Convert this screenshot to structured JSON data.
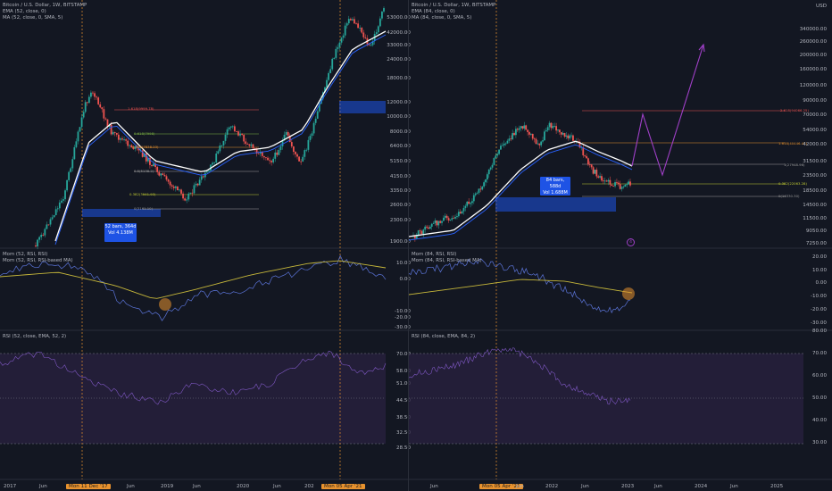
{
  "left": {
    "title": "Bitcoin / U.S. Dollar, 1W, BITSTAMP",
    "ema": "EMA (52, close, 0)",
    "ma": "MA (52, close, 0, SMA, 5)",
    "mom": "Mom (52, RSI, RSI)",
    "mom_ma": "Mom (52, RSI, RSI-based MA)",
    "rsi": "RSI (52, close, EMA, 52, 2)",
    "box_line1": "52 bars, 364d",
    "box_line2": "Vol 4.138M",
    "fib1": "1.618(9999.78)",
    "fib2": "0.786(7838.23)",
    "fib3": "0.5(5138.2)",
    "fib4": "0.382(3941.93)",
    "fib5": "0(3161.10)",
    "fib6": "0.618(7998)",
    "price_axis": [
      "53000.00",
      "42000.00",
      "33000.00",
      "24000.00",
      "18000.00",
      "12000.00",
      "10000.00",
      "8000.00",
      "6400.00",
      "5150.00",
      "4150.00",
      "3350.00",
      "2600.00",
      "2300.00",
      "1900.00"
    ],
    "mom_axis": [
      "10.00",
      "0.00",
      "-10.00",
      "-20.00",
      "-30.00"
    ],
    "rsi_axis": [
      "70.00",
      "58.00",
      "51.00",
      "44.50",
      "38.50",
      "32.50",
      "28.50"
    ],
    "x_labels": [
      "2017",
      "Jun",
      "Mon 11 Dec '17",
      "Jun",
      "2019",
      "Jun",
      "2020",
      "Jun",
      "202",
      "Mon 05 Apr '21"
    ]
  },
  "right": {
    "title": "Bitcoin / U.S. Dollar, 1W, BITSTAMP",
    "ema": "EMA (84, close, 0)",
    "ma": "MA (84, close, 0, SMA, 5)",
    "mom": "Mom (84, RSI, RSI)",
    "mom_ma": "Mom (84, RSI, RSI-based MA)",
    "rsi": "RSI (84, close, EMA, 84, 2)",
    "box_line1": "84 bars, 588d",
    "box_line2": "Vol 1.688M",
    "fib1": "2.618(94066.25)",
    "fib2": "1.618(40446.43)",
    "fib3": "1(27948.96)",
    "fib4": "0.382(22063.28)",
    "fib5": "0(16330.30)",
    "circle_label": "4",
    "price_axis": [
      "USD",
      "340000.00",
      "260000.00",
      "200000.00",
      "160000.00",
      "120000.00",
      "90000.00",
      "70000.00",
      "54000.00",
      "42000.00",
      "31500.00",
      "23500.00",
      "18500.00",
      "14500.00",
      "11500.00",
      "9050.00",
      "7250.00"
    ],
    "mom_axis": [
      "20.00",
      "10.00",
      "0.00",
      "-10.00",
      "-20.00",
      "-30.00"
    ],
    "rsi_axis": [
      "80.00",
      "70.00",
      "60.00",
      "50.00",
      "40.00",
      "30.00"
    ],
    "x_labels": [
      "Jun",
      "Mon 05 Apr '21",
      "Jun",
      "2022",
      "Jun",
      "2023",
      "Jun",
      "2024",
      "Jun",
      "2025"
    ]
  },
  "colors": {
    "background": "#131722",
    "ema": "#ffffff",
    "ma": "#2962ff",
    "up_candle": "#26a69a",
    "down_candle": "#ef5350",
    "rsi_line": "#7e57c2",
    "rsi_band": "#2a2240",
    "mom_line": "#5b74d8",
    "mom_ma": "#c5b63a",
    "projection": "#a040c8",
    "zone": "#1e53e5",
    "highlight": "#e8922e"
  }
}
